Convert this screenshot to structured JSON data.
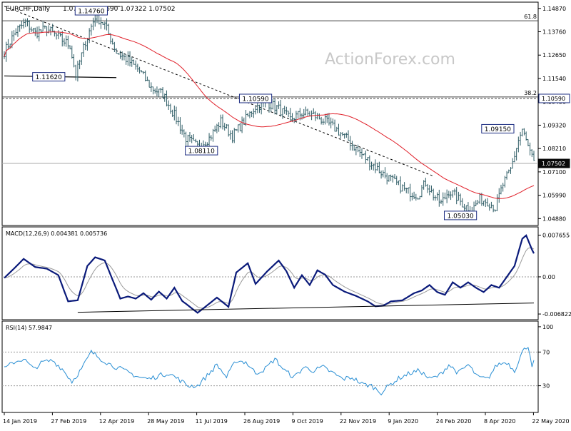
{
  "header": {
    "symbol": "EURCHF,Daily",
    "ohlc": "1.07468 1.07690 1.07322 1.07502"
  },
  "watermark": "ActionForex.com",
  "colors": {
    "bar": "#2f5d66",
    "ma": "#e0202a",
    "macd_line": "#0a1a7a",
    "signal_line": "#9a9a9a",
    "rsi": "#2a8fd4",
    "grid": "#999999",
    "box_border": "#1a2a80",
    "current_bg": "#0a0a0a"
  },
  "chart_data": [
    {
      "type": "ohlc",
      "ylim": [
        1.0462,
        1.151
      ],
      "price_ticks": [
        "1.14870",
        "1.13760",
        "1.12650",
        "1.11540",
        "1.10430",
        "1.09320",
        "1.08210",
        "1.07100",
        "1.05990",
        "1.04880"
      ],
      "tick_values": [
        1.1487,
        1.1376,
        1.1265,
        1.1154,
        1.1043,
        1.0932,
        1.0821,
        1.071,
        1.0599,
        1.0488
      ],
      "fib_levels": [
        {
          "label": "61.8",
          "value": 1.1428
        },
        {
          "label": "38.2",
          "value": 1.1066
        }
      ],
      "price_flags": [
        {
          "label": "1.10590",
          "value": 1.1059,
          "style": "outline"
        },
        {
          "label": "1.07502",
          "value": 1.07502,
          "style": "current"
        }
      ],
      "annotations": [
        {
          "label": "1.14760",
          "value": 1.1476,
          "bar": 45
        },
        {
          "label": "1.11620",
          "value": 1.1162,
          "bar": 23
        },
        {
          "label": "1.10590",
          "value": 1.1059,
          "bar": 130
        },
        {
          "label": "1.08110",
          "value": 1.0811,
          "bar": 102
        },
        {
          "label": "1.09150",
          "value": 1.0915,
          "bar": 268
        },
        {
          "label": "1.05030",
          "value": 1.0503,
          "bar": 236
        }
      ],
      "anchors": [
        [
          0,
          1.128
        ],
        [
          6,
          1.138
        ],
        [
          11,
          1.142
        ],
        [
          16,
          1.137
        ],
        [
          22,
          1.139
        ],
        [
          28,
          1.135
        ],
        [
          34,
          1.131
        ],
        [
          37,
          1.117
        ],
        [
          42,
          1.133
        ],
        [
          47,
          1.145
        ],
        [
          52,
          1.141
        ],
        [
          58,
          1.128
        ],
        [
          64,
          1.124
        ],
        [
          70,
          1.119
        ],
        [
          76,
          1.111
        ],
        [
          82,
          1.108
        ],
        [
          88,
          1.098
        ],
        [
          94,
          1.087
        ],
        [
          100,
          1.083
        ],
        [
          106,
          1.087
        ],
        [
          112,
          1.095
        ],
        [
          118,
          1.088
        ],
        [
          124,
          1.095
        ],
        [
          130,
          1.102
        ],
        [
          136,
          1.104
        ],
        [
          142,
          1.101
        ],
        [
          148,
          1.096
        ],
        [
          154,
          1.099
        ],
        [
          160,
          1.098
        ],
        [
          166,
          1.095
        ],
        [
          172,
          1.091
        ],
        [
          178,
          1.086
        ],
        [
          184,
          1.08
        ],
        [
          190,
          1.075
        ],
        [
          196,
          1.07
        ],
        [
          202,
          1.066
        ],
        [
          208,
          1.062
        ],
        [
          214,
          1.06
        ],
        [
          218,
          1.066
        ],
        [
          222,
          1.06
        ],
        [
          226,
          1.056
        ],
        [
          230,
          1.062
        ],
        [
          234,
          1.059
        ],
        [
          238,
          1.055
        ],
        [
          242,
          1.053
        ],
        [
          246,
          1.058
        ],
        [
          250,
          1.057
        ],
        [
          254,
          1.054
        ],
        [
          258,
          1.065
        ],
        [
          262,
          1.072
        ],
        [
          266,
          1.086
        ],
        [
          268,
          1.091
        ],
        [
          271,
          1.083
        ],
        [
          274,
          1.075
        ]
      ],
      "ma_period": 50
    },
    {
      "type": "line",
      "title": "MACD(12,26,9) 0.004381 0.005736",
      "ylim": [
        -0.0076,
        0.0089
      ],
      "ticks": [
        {
          "label": "0.007655",
          "value": 0.007655
        },
        {
          "label": "0.00",
          "value": 0
        },
        {
          "label": "-0.006822",
          "value": -0.006822
        }
      ],
      "macd_anchors": [
        [
          0,
          -0.0002
        ],
        [
          5,
          0.0015
        ],
        [
          10,
          0.0033
        ],
        [
          16,
          0.0018
        ],
        [
          22,
          0.0015
        ],
        [
          28,
          0.0003
        ],
        [
          33,
          -0.0045
        ],
        [
          38,
          -0.0043
        ],
        [
          43,
          0.002
        ],
        [
          47,
          0.0036
        ],
        [
          52,
          0.003
        ],
        [
          56,
          -0.0005
        ],
        [
          60,
          -0.004
        ],
        [
          64,
          -0.0036
        ],
        [
          68,
          -0.004
        ],
        [
          72,
          -0.003
        ],
        [
          76,
          -0.0042
        ],
        [
          80,
          -0.0027
        ],
        [
          84,
          -0.004
        ],
        [
          88,
          -0.002
        ],
        [
          92,
          -0.0044
        ],
        [
          96,
          -0.0055
        ],
        [
          100,
          -0.0066
        ],
        [
          104,
          -0.0055
        ],
        [
          110,
          -0.0038
        ],
        [
          116,
          -0.0055
        ],
        [
          120,
          0.0008
        ],
        [
          126,
          0.0025
        ],
        [
          130,
          -0.0013
        ],
        [
          136,
          0.001
        ],
        [
          142,
          0.003
        ],
        [
          146,
          0.001
        ],
        [
          150,
          -0.002
        ],
        [
          154,
          0.0003
        ],
        [
          158,
          -0.0015
        ],
        [
          162,
          0.0012
        ],
        [
          166,
          0.0004
        ],
        [
          170,
          -0.0015
        ],
        [
          176,
          -0.0027
        ],
        [
          182,
          -0.0035
        ],
        [
          188,
          -0.0045
        ],
        [
          192,
          -0.0054
        ],
        [
          196,
          -0.0053
        ],
        [
          200,
          -0.0045
        ],
        [
          206,
          -0.0043
        ],
        [
          212,
          -0.003
        ],
        [
          216,
          -0.0025
        ],
        [
          220,
          -0.0015
        ],
        [
          224,
          -0.0028
        ],
        [
          228,
          -0.0033
        ],
        [
          232,
          -0.001
        ],
        [
          236,
          -0.002
        ],
        [
          240,
          -0.001
        ],
        [
          244,
          -0.002
        ],
        [
          248,
          -0.0028
        ],
        [
          252,
          -0.0015
        ],
        [
          256,
          -0.002
        ],
        [
          260,
          0.0
        ],
        [
          264,
          0.002
        ],
        [
          268,
          0.007
        ],
        [
          270,
          0.0076
        ],
        [
          273,
          0.005
        ],
        [
          274,
          0.0043
        ]
      ],
      "signal_period": 9,
      "trendline": [
        [
          38,
          -0.0065
        ],
        [
          274,
          -0.0048
        ]
      ]
    },
    {
      "type": "line",
      "title": "RSI(14) 57.9847",
      "ylim": [
        0,
        105
      ],
      "ticks": [
        {
          "label": "100",
          "value": 100
        },
        {
          "label": "70",
          "value": 70
        },
        {
          "label": "30",
          "value": 30
        }
      ],
      "rsi_anchors": [
        [
          0,
          50
        ],
        [
          5,
          58
        ],
        [
          10,
          62
        ],
        [
          15,
          50
        ],
        [
          20,
          58
        ],
        [
          25,
          60
        ],
        [
          30,
          50
        ],
        [
          35,
          35
        ],
        [
          40,
          50
        ],
        [
          45,
          70
        ],
        [
          50,
          62
        ],
        [
          55,
          55
        ],
        [
          60,
          50
        ],
        [
          65,
          45
        ],
        [
          70,
          40
        ],
        [
          75,
          38
        ],
        [
          80,
          42
        ],
        [
          85,
          45
        ],
        [
          90,
          38
        ],
        [
          95,
          30
        ],
        [
          100,
          30
        ],
        [
          105,
          42
        ],
        [
          110,
          55
        ],
        [
          115,
          40
        ],
        [
          120,
          60
        ],
        [
          125,
          58
        ],
        [
          130,
          45
        ],
        [
          135,
          50
        ],
        [
          140,
          62
        ],
        [
          145,
          48
        ],
        [
          150,
          40
        ],
        [
          155,
          52
        ],
        [
          160,
          48
        ],
        [
          165,
          52
        ],
        [
          170,
          45
        ],
        [
          175,
          38
        ],
        [
          180,
          40
        ],
        [
          185,
          32
        ],
        [
          190,
          30
        ],
        [
          195,
          22
        ],
        [
          200,
          32
        ],
        [
          205,
          40
        ],
        [
          210,
          45
        ],
        [
          215,
          48
        ],
        [
          220,
          38
        ],
        [
          225,
          42
        ],
        [
          230,
          55
        ],
        [
          235,
          45
        ],
        [
          240,
          55
        ],
        [
          245,
          40
        ],
        [
          250,
          38
        ],
        [
          255,
          55
        ],
        [
          260,
          58
        ],
        [
          264,
          48
        ],
        [
          268,
          70
        ],
        [
          271,
          78
        ],
        [
          273,
          55
        ],
        [
          274,
          58
        ]
      ]
    }
  ],
  "x_axis": {
    "labels": [
      "14 Jan 2019",
      "27 Feb 2019",
      "12 Apr 2019",
      "28 May 2019",
      "11 Jul 2019",
      "26 Aug 2019",
      "9 Oct 2019",
      "22 Nov 2019",
      "9 Jan 2020",
      "24 Feb 2020",
      "8 Apr 2020",
      "22 May 2020"
    ],
    "label_bars": [
      0,
      32,
      64,
      96,
      128,
      160,
      192,
      224,
      256,
      288,
      320,
      352
    ],
    "bar_count": 275
  }
}
